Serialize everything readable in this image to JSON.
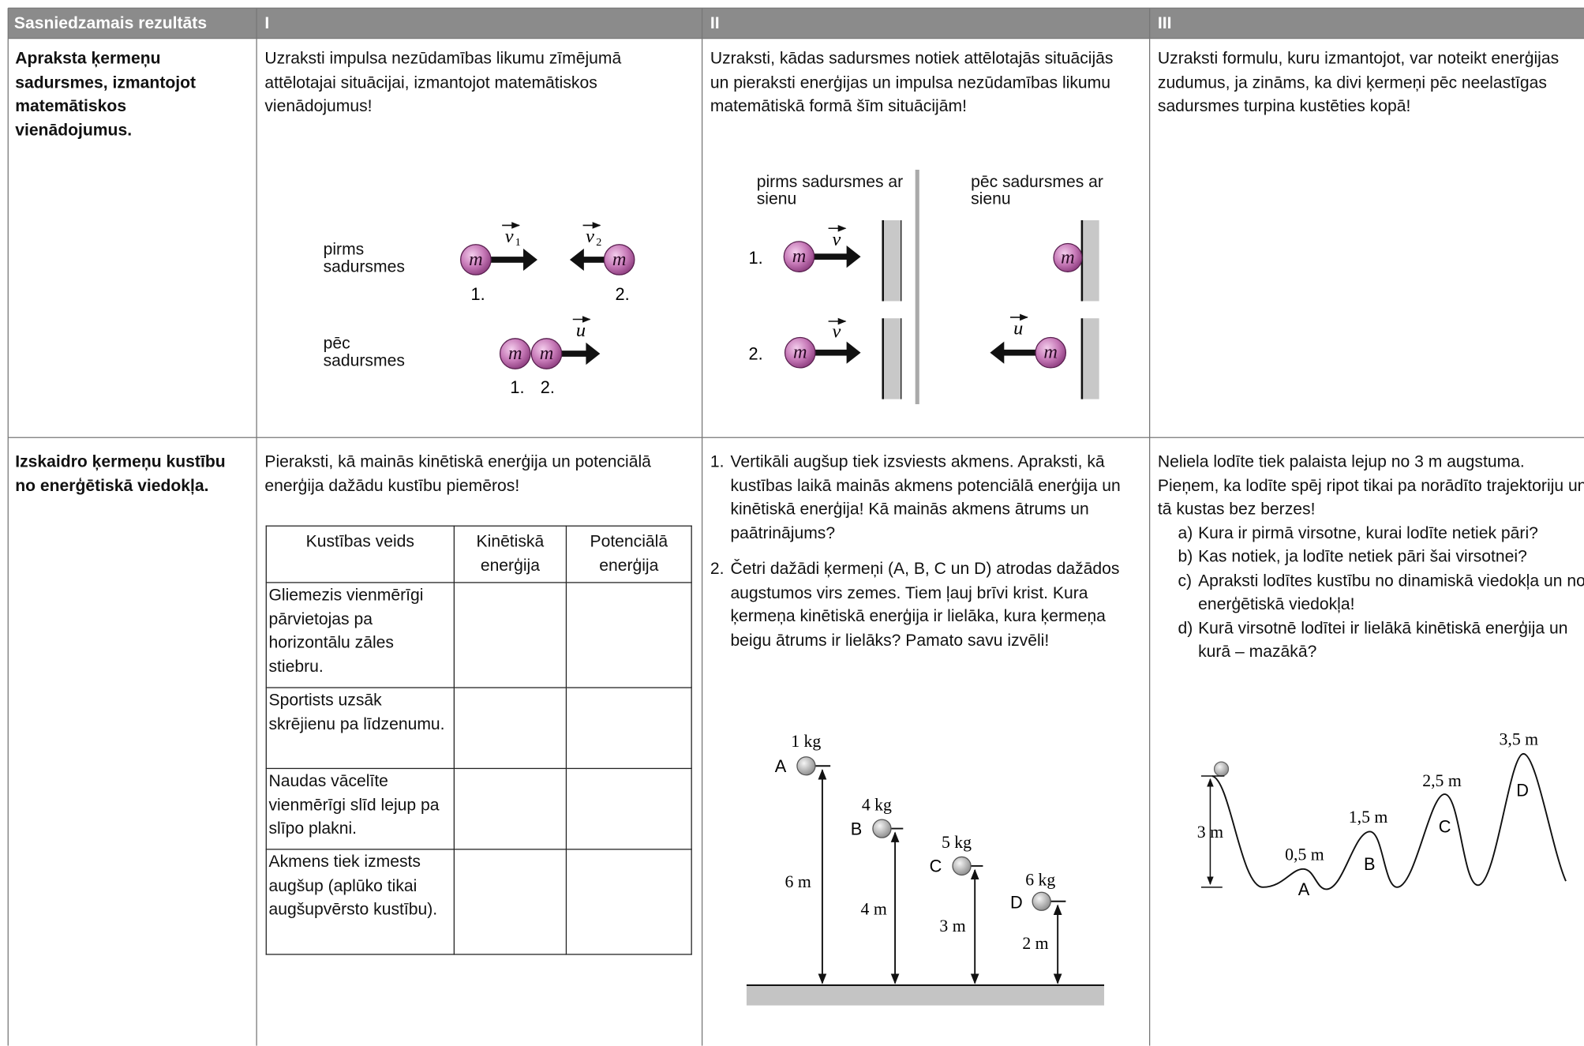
{
  "header": {
    "result": "Sasniedzamais rezultāts",
    "level_1": "I",
    "level_2": "II",
    "level_3": "III"
  },
  "row_1": {
    "result": "Apraksta ķermeņu sadursmes, izmantojot matemātiskos vienādojumus.",
    "task_1": "Uzraksti impulsa nezūdamības likumu zīmējumā attēlotajai situācijai, izmantojot matemātiskos vienādojumus!",
    "figure_1": {
      "before": "pirms sadursmes",
      "after": "pēc sadursmes",
      "mass": "m",
      "velocity": "v",
      "index_1": "1",
      "index_2": "2",
      "velocity_after": "u",
      "ball_1": "1.",
      "ball_2": "2."
    },
    "task_2": "Uzraksti, kādas sadursmes notiek attēlotajās situācijās un pieraksti enerģijas un impulsa nezūdamības likumu matemātiskā formā šīm situācijām!",
    "figure_2": {
      "before": "pirms sadursmes ar sienu",
      "after": "pēc sadursmes ar sienu",
      "case_1": "1.",
      "case_2": "2.",
      "mass": "m",
      "velocity_before": "v",
      "velocity_after": "u"
    },
    "task_3": "Uzraksti formulu, kuru izmantojot, var noteikt enerģijas zudumus, ja zināms, ka divi ķermeņi pēc neelastīgas sadursmes turpina kustēties kopā!"
  },
  "row_2": {
    "result": "Izskaidro ķermeņu kustību no enerģētiskā viedokļa.",
    "task_1": "Pieraksti, kā mainās kinētiskā enerģija un potenciālā enerģija dažādu kustību piemēros!",
    "energy_table": {
      "header": [
        "Kustības veids",
        "Kinētiskā enerģija",
        "Potenciālā enerģija"
      ],
      "rows": [
        "Gliemezis vienmērīgi pārvietojas pa horizontālu zāles stiebru.",
        "Sportists uzsāk skrējienu pa līdzenumu.",
        "Naudas vācelīte vienmērīgi slīd lejup pa slīpo plakni.",
        "Akmens tiek izmests augšup (aplūko tikai augšupvērsto kustību)."
      ]
    },
    "task_2": [
      {
        "number": "1.",
        "text": "Vertikāli augšup tiek izsviests akmens. Apraksti, kā kustības laikā mainās akmens potenciālā enerģija un kinētiskā enerģija! Kā mainās akmens ātrums un paātrinājums?"
      },
      {
        "number": "2.",
        "text": "Četri dažādi ķermeņi (A, B, C un D) atrodas dažādos augstumos virs zemes. Tiem ļauj brīvi krist. Kura ķermeņa kinētiskā enerģija ir lielāka, kura ķermeņa beigu ātrums ir lielāks? Pamato savu izvēli!"
      }
    ],
    "figure_2": [
      {
        "label": "A",
        "mass": "1 kg",
        "height": "6 m"
      },
      {
        "label": "B",
        "mass": "4 kg",
        "height": "4 m"
      },
      {
        "label": "C",
        "mass": "5 kg",
        "height": "3 m"
      },
      {
        "label": "D",
        "mass": "6 kg",
        "height": "2 m"
      }
    ],
    "task_3": {
      "intro": "Neliela lodīte tiek palaista lejup no 3 m augstuma. Pieņem, ka lodīte spēj ripot tikai pa norādīto trajektoriju un tā kustas bez berzes!",
      "items": [
        {
          "letter": "a)",
          "text": "Kura ir pirmā virsotne, kurai lodīte netiek pāri?"
        },
        {
          "letter": "b)",
          "text": "Kas notiek, ja lodīte netiek pāri šai virsotnei?"
        },
        {
          "letter": "c)",
          "text": "Apraksti lodītes kustību no dinamiskā viedokļa un no enerģētiskā viedokļa!"
        },
        {
          "letter": "d)",
          "text": "Kurā virsotnē lodītei ir lielākā kinētiskā enerģija un kurā – mazākā?"
        }
      ]
    },
    "figure_3": {
      "start_height": "3 m",
      "peaks": [
        {
          "label": "A",
          "height": "0,5 m"
        },
        {
          "label": "B",
          "height": "1,5 m"
        },
        {
          "label": "C",
          "height": "2,5 m"
        },
        {
          "label": "D",
          "height": "3,5 m"
        }
      ]
    }
  }
}
